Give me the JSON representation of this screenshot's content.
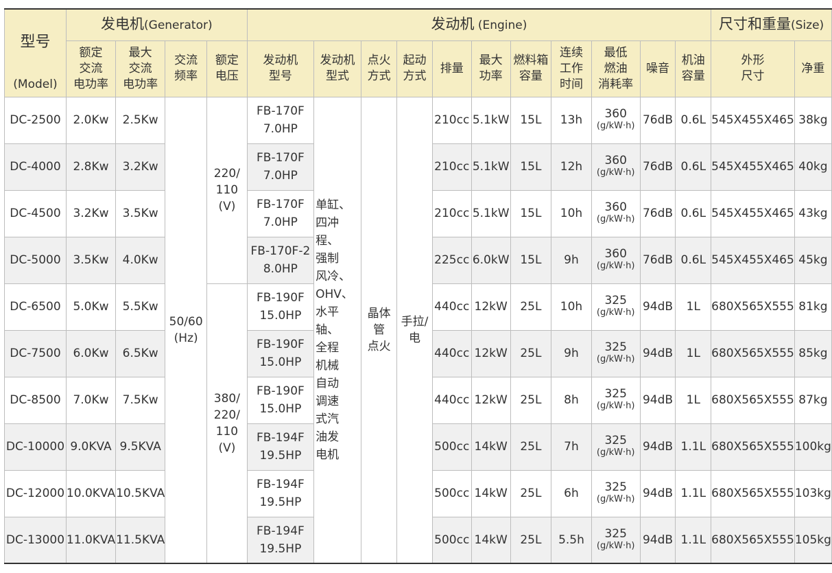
{
  "header": {
    "model": {
      "cn": "型号",
      "en": "(Model)"
    },
    "generator": {
      "cn": "发电机",
      "en": "(Generator)"
    },
    "engine": {
      "cn": "发动机",
      "en": " (Engine)"
    },
    "size": {
      "cn": "尺寸和重量",
      "en": "(Size)"
    },
    "columns": {
      "rated_power": "额定\n交流\n电功率",
      "max_power": "最大\n交流\n电功率",
      "frequency": "交流\n频率",
      "rated_voltage": "额定\n电压",
      "engine_model": "发动机\n型号",
      "engine_type": "发动机\n型式",
      "ignition": "点火\n方式",
      "start": "起动\n方式",
      "displacement": "排量",
      "max_output": "最大\n功率",
      "fuel_tank": "燃料箱\n容量",
      "runtime": "连续\n工作\n时间",
      "fuel_consumption": "最低\n燃油\n消耗率",
      "noise": "噪音",
      "oil_capacity": "机油\n容量",
      "dimensions": "外形\n尺寸",
      "net_weight": "净重"
    }
  },
  "merged": {
    "frequency": "50/60\n(Hz)",
    "voltage_a": "220/\n110\n(V)",
    "voltage_b": "380/\n220/\n110\n(V)",
    "engine_type": "单缸、\n四冲程、\n强制\n风冷、\nOHV、\n水平轴、\n全程\n机械\n自动\n调速\n式汽\n油发\n电机",
    "ignition": "晶体\n管\n点火",
    "start": "手拉/\n电"
  },
  "fuel_unit": "(g/kW·h)",
  "rows": [
    {
      "model": "DC-2500",
      "rated": "2.0Kw",
      "max": "2.5Kw",
      "engine": "FB-170F\n7.0HP",
      "displacement": "210cc",
      "output": "5.1kW",
      "tank": "15L",
      "runtime": "13h",
      "consumption": "360",
      "noise": "76dB",
      "oil": "0.6L",
      "dimensions": "545X455X465",
      "weight": "38kg"
    },
    {
      "model": "DC-4000",
      "rated": "2.8Kw",
      "max": "3.2Kw",
      "engine": "FB-170F\n7.0HP",
      "displacement": "210cc",
      "output": "5.1kW",
      "tank": "15L",
      "runtime": "12h",
      "consumption": "360",
      "noise": "76dB",
      "oil": "0.6L",
      "dimensions": "545X455X465",
      "weight": "40kg"
    },
    {
      "model": "DC-4500",
      "rated": "3.2Kw",
      "max": "3.5Kw",
      "engine": "FB-170F\n7.0HP",
      "displacement": "210cc",
      "output": "5.1kW",
      "tank": "15L",
      "runtime": "10h",
      "consumption": "360",
      "noise": "76dB",
      "oil": "0.6L",
      "dimensions": "545X455X465",
      "weight": "43kg"
    },
    {
      "model": "DC-5000",
      "rated": "3.5Kw",
      "max": "4.0Kw",
      "engine": "FB-170F-2\n8.0HP",
      "displacement": "225cc",
      "output": "6.0kW",
      "tank": "15L",
      "runtime": "9h",
      "consumption": "360",
      "noise": "76dB",
      "oil": "0.6L",
      "dimensions": "545X455X465",
      "weight": "45kg"
    },
    {
      "model": "DC-6500",
      "rated": "5.0Kw",
      "max": "5.5Kw",
      "engine": "FB-190F\n15.0HP",
      "displacement": "440cc",
      "output": "12kW",
      "tank": "25L",
      "runtime": "10h",
      "consumption": "325",
      "noise": "94dB",
      "oil": "1L",
      "dimensions": "680X565X555",
      "weight": "81kg"
    },
    {
      "model": "DC-7500",
      "rated": "6.0Kw",
      "max": "6.5Kw",
      "engine": "FB-190F\n15.0HP",
      "displacement": "440cc",
      "output": "12kW",
      "tank": "25L",
      "runtime": "9h",
      "consumption": "325",
      "noise": "94dB",
      "oil": "1L",
      "dimensions": "680X565X555",
      "weight": "85kg"
    },
    {
      "model": "DC-8500",
      "rated": "7.0Kw",
      "max": "7.5Kw",
      "engine": "FB-190F\n15.0HP",
      "displacement": "440cc",
      "output": "12kW",
      "tank": "25L",
      "runtime": "8h",
      "consumption": "325",
      "noise": "94dB",
      "oil": "1L",
      "dimensions": "680X565X555",
      "weight": "87kg"
    },
    {
      "model": "DC-10000",
      "rated": "9.0KVA",
      "max": "9.5KVA",
      "engine": "FB-194F\n19.5HP",
      "displacement": "500cc",
      "output": "14kW",
      "tank": "25L",
      "runtime": "7h",
      "consumption": "325",
      "noise": "94dB",
      "oil": "1.1L",
      "dimensions": "680X565X555",
      "weight": "100kg"
    },
    {
      "model": "DC-12000",
      "rated": "10.0KVA",
      "max": "10.5KVA",
      "engine": "FB-194F\n19.5HP",
      "displacement": "500cc",
      "output": "14kW",
      "tank": "25L",
      "runtime": "6h",
      "consumption": "325",
      "noise": "94dB",
      "oil": "1.1L",
      "dimensions": "680X565X555",
      "weight": "103kg"
    },
    {
      "model": "DC-13000",
      "rated": "11.0KVA",
      "max": "11.5KVA",
      "engine": "FB-194F\n19.5HP",
      "displacement": "500cc",
      "output": "14kW",
      "tank": "25L",
      "runtime": "5.5h",
      "consumption": "325",
      "noise": "94dB",
      "oil": "1.1L",
      "dimensions": "680X565X555",
      "weight": "105kg"
    }
  ]
}
